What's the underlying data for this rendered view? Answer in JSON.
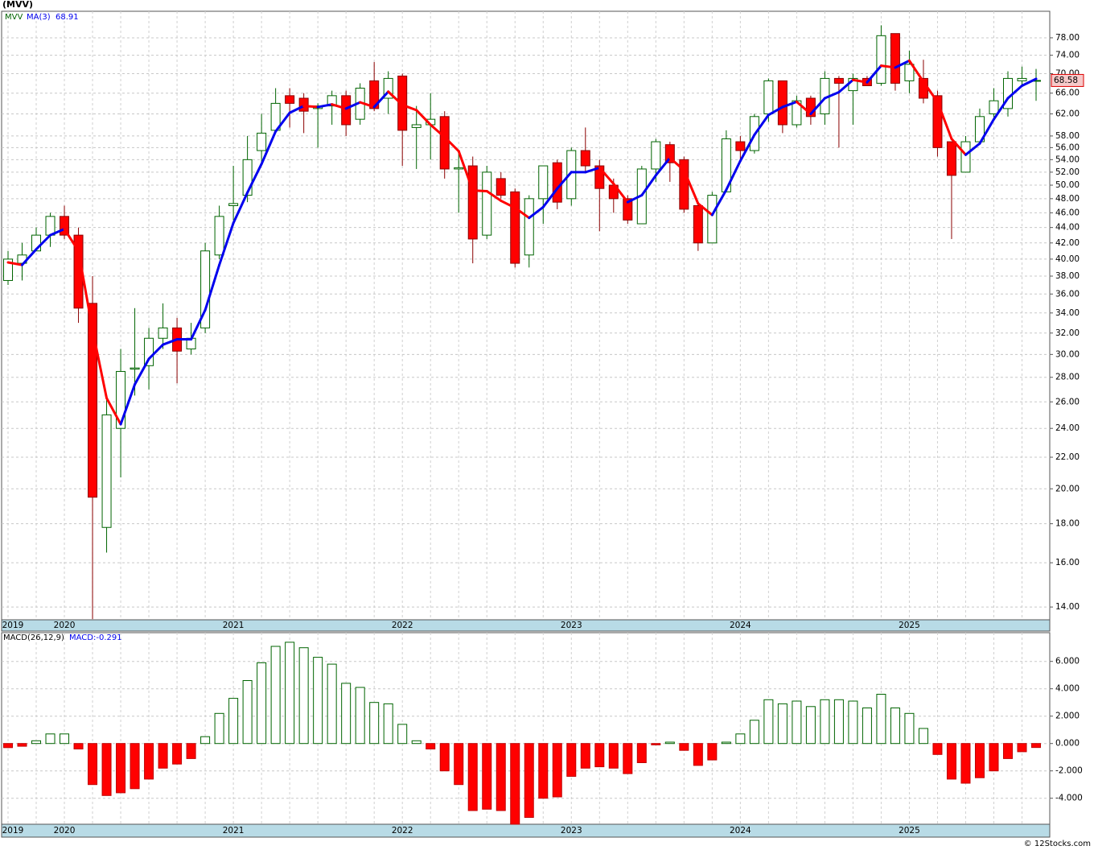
{
  "chart_data": [
    {
      "type": "candlestick",
      "title": "(MVV)",
      "ticker": "MVV",
      "categories": [
        "2019",
        null,
        null,
        null,
        "2020",
        null,
        null,
        null,
        null,
        null,
        null,
        null,
        null,
        null,
        null,
        null,
        "2021",
        null,
        null,
        null,
        null,
        null,
        null,
        null,
        null,
        null,
        null,
        null,
        "2022",
        null,
        null,
        null,
        null,
        null,
        null,
        null,
        null,
        null,
        null,
        null,
        "2023",
        null,
        null,
        null,
        null,
        null,
        null,
        null,
        null,
        null,
        null,
        null,
        "2024",
        null,
        null,
        null,
        null,
        null,
        null,
        null,
        null,
        null,
        null,
        null,
        "2025",
        null,
        null,
        null,
        null,
        null,
        null,
        null,
        null,
        null
      ],
      "open": [
        37.5,
        39.5,
        41,
        43,
        45.5,
        43,
        35,
        17.8,
        24,
        28.7,
        29,
        31.5,
        32.5,
        30.5,
        32.5,
        40.5,
        47,
        48.5,
        55.5,
        59,
        65.5,
        65,
        63,
        63.5,
        65.5,
        61,
        68.5,
        65,
        69.5,
        59.5,
        60,
        61.5,
        52.5,
        53,
        43,
        51,
        49,
        40.5,
        48,
        53.5,
        48,
        55.5,
        53,
        50,
        48,
        44.5,
        52.5,
        56.5,
        54,
        47,
        42,
        49,
        57,
        55.5,
        62,
        68.5,
        60,
        65,
        62,
        69,
        66.5,
        69,
        68,
        79,
        68.5,
        69,
        65.5,
        57,
        52,
        57,
        62,
        63,
        68.5,
        68.5
      ],
      "high": [
        41,
        42,
        44,
        46,
        47,
        44,
        38,
        26.5,
        30.5,
        34.5,
        32.5,
        35,
        33.5,
        33,
        42,
        47,
        53,
        58,
        62,
        67,
        67,
        66,
        64,
        66.5,
        66.5,
        68,
        72.5,
        70.5,
        70,
        63.5,
        66,
        62.5,
        55,
        54.5,
        53,
        52,
        49.5,
        48.5,
        53,
        54,
        56,
        59.5,
        54,
        51,
        48.5,
        53,
        57.5,
        57,
        54.5,
        47.5,
        49,
        59,
        58,
        62,
        69,
        68.5,
        65.5,
        65.5,
        70.5,
        69.5,
        70,
        69.5,
        81,
        79,
        75,
        73,
        66.5,
        57,
        58,
        63,
        67,
        70.5,
        71.5,
        71
      ],
      "low": [
        37,
        37.5,
        41,
        41.5,
        42.5,
        33,
        13.5,
        16.5,
        20.7,
        26.5,
        27,
        30.5,
        27.5,
        30,
        32,
        40,
        45,
        47.5,
        53,
        58.5,
        59.5,
        58.5,
        56,
        60,
        58,
        60,
        62.5,
        62,
        53,
        52.5,
        54,
        51,
        46,
        39.5,
        42.5,
        48,
        39,
        39,
        44.5,
        46.5,
        47,
        52,
        43.5,
        46,
        44.5,
        44.5,
        50.5,
        50.5,
        46,
        41,
        42,
        49,
        54,
        55,
        60.5,
        58.5,
        59.5,
        60,
        60,
        56,
        60,
        67.5,
        67.5,
        66.5,
        66,
        64,
        54.5,
        42.5,
        52,
        57,
        61,
        61.5,
        67.5,
        64.5
      ],
      "close": [
        40,
        40.5,
        43,
        45.5,
        43,
        34.5,
        19.5,
        25,
        28.5,
        28.8,
        31.5,
        32.5,
        30.3,
        31.5,
        41,
        45.5,
        47.3,
        54,
        58.5,
        64,
        64,
        62.5,
        63.5,
        65.5,
        60,
        67,
        63,
        69,
        59,
        60,
        61,
        52.5,
        52.7,
        42.5,
        52,
        48.5,
        39.5,
        48,
        53,
        47.5,
        55.5,
        53,
        49.5,
        48,
        45,
        52.5,
        57,
        53.5,
        46.5,
        42,
        48.5,
        57.5,
        55.5,
        61.5,
        68.5,
        60,
        64.5,
        61.5,
        69,
        68,
        69,
        67.5,
        78.5,
        68,
        72,
        65,
        56,
        51.5,
        57,
        61.5,
        64.5,
        69,
        69,
        68.58
      ],
      "close_label": "68.58",
      "up_color": "#006400",
      "down_color": "#ff0000",
      "ma": {
        "name": "MA(3)",
        "value_label": "68.91",
        "up_color": "#0000ee",
        "down_color": "#ff0000",
        "values": [
          39.6,
          39.3,
          41.2,
          43.0,
          43.8,
          41.0,
          32.3,
          26.3,
          24.3,
          27.4,
          29.6,
          30.9,
          31.4,
          31.4,
          34.3,
          39.3,
          44.6,
          48.9,
          53.3,
          58.8,
          62.2,
          63.5,
          63.3,
          63.8,
          63.0,
          64.2,
          63.3,
          66.3,
          63.7,
          62.7,
          60.0,
          57.8,
          55.4,
          49.2,
          49.1,
          47.7,
          46.7,
          45.3,
          46.8,
          49.5,
          52.0,
          52.0,
          52.7,
          50.2,
          47.5,
          48.5,
          51.5,
          54.3,
          52.3,
          47.3,
          45.7,
          49.3,
          53.8,
          58.2,
          61.8,
          63.3,
          64.3,
          62.0,
          65.0,
          66.2,
          68.7,
          68.2,
          71.7,
          71.3,
          72.8,
          68.3,
          64.3,
          57.5,
          54.8,
          56.7,
          61.0,
          65.0,
          67.5,
          68.91
        ]
      },
      "log_scale": true,
      "grid": true,
      "ylim": [
        13.47,
        84.5
      ],
      "yticks": [
        {
          "value": 14,
          "label": "14.00"
        },
        {
          "value": 16,
          "label": "16.00"
        },
        {
          "value": 18,
          "label": "18.00"
        },
        {
          "value": 20,
          "label": "20.00"
        },
        {
          "value": 22,
          "label": "22.00"
        },
        {
          "value": 24,
          "label": "24.00"
        },
        {
          "value": 26,
          "label": "26.00"
        },
        {
          "value": 28,
          "label": "28.00"
        },
        {
          "value": 30,
          "label": "30.00"
        },
        {
          "value": 32,
          "label": "32.00"
        },
        {
          "value": 34,
          "label": "34.00"
        },
        {
          "value": 36,
          "label": "36.00"
        },
        {
          "value": 38,
          "label": "38.00"
        },
        {
          "value": 40,
          "label": "40.00"
        },
        {
          "value": 42,
          "label": "42.00"
        },
        {
          "value": 44,
          "label": "44.00"
        },
        {
          "value": 46,
          "label": "46.00"
        },
        {
          "value": 48,
          "label": "48.00"
        },
        {
          "value": 50,
          "label": "50.00"
        },
        {
          "value": 52,
          "label": "52.00"
        },
        {
          "value": 54,
          "label": "54.00"
        },
        {
          "value": 56,
          "label": "56.00"
        },
        {
          "value": 58,
          "label": "58.00"
        },
        {
          "value": 62,
          "label": "62.00"
        },
        {
          "value": 66,
          "label": "66.00"
        },
        {
          "value": 70,
          "label": "70.00"
        },
        {
          "value": 74,
          "label": "74.00"
        },
        {
          "value": 78,
          "label": "78.00"
        }
      ]
    },
    {
      "type": "bar",
      "title": "MACD(26,12,9)",
      "readout": "MACD:-0.291",
      "categories": [
        "2019",
        null,
        null,
        null,
        "2020",
        null,
        null,
        null,
        null,
        null,
        null,
        null,
        null,
        null,
        null,
        null,
        "2021",
        null,
        null,
        null,
        null,
        null,
        null,
        null,
        null,
        null,
        null,
        null,
        "2022",
        null,
        null,
        null,
        null,
        null,
        null,
        null,
        null,
        null,
        null,
        null,
        "2023",
        null,
        null,
        null,
        null,
        null,
        null,
        null,
        null,
        null,
        null,
        null,
        "2024",
        null,
        null,
        null,
        null,
        null,
        null,
        null,
        null,
        null,
        null,
        null,
        "2025",
        null,
        null,
        null,
        null,
        null,
        null,
        null,
        null,
        null
      ],
      "values": [
        -0.3,
        -0.2,
        0.2,
        0.7,
        0.7,
        -0.4,
        -3.0,
        -3.8,
        -3.6,
        -3.3,
        -2.6,
        -1.8,
        -1.5,
        -1.1,
        0.5,
        2.2,
        3.3,
        4.6,
        5.9,
        7.1,
        7.4,
        7.0,
        6.3,
        5.8,
        4.4,
        4.1,
        3.0,
        2.9,
        1.4,
        0.2,
        -0.4,
        -2.0,
        -3.0,
        -4.9,
        -4.8,
        -4.9,
        -5.9,
        -5.4,
        -4.0,
        -3.9,
        -2.4,
        -1.8,
        -1.7,
        -1.8,
        -2.2,
        -1.4,
        -0.1,
        0.1,
        -0.5,
        -1.6,
        -1.2,
        0.1,
        0.7,
        1.7,
        3.2,
        2.9,
        3.1,
        2.7,
        3.2,
        3.2,
        3.1,
        2.6,
        3.6,
        2.6,
        2.2,
        1.1,
        -0.8,
        -2.6,
        -2.9,
        -2.5,
        -2.0,
        -1.1,
        -0.6,
        -0.291
      ],
      "up_color": "#006400",
      "down_color": "#ff0000",
      "grid": true,
      "ylim": [
        -5.9,
        8.1
      ],
      "yticks": [
        {
          "value": 6,
          "label": "6.000"
        },
        {
          "value": 4,
          "label": "4.000"
        },
        {
          "value": 2,
          "label": "2.000"
        },
        {
          "value": 0,
          "label": "0.000"
        },
        {
          "value": -2,
          "label": "-2.000"
        },
        {
          "value": -4,
          "label": "-4.000"
        }
      ]
    }
  ],
  "footer": "© 12Stocks.com"
}
